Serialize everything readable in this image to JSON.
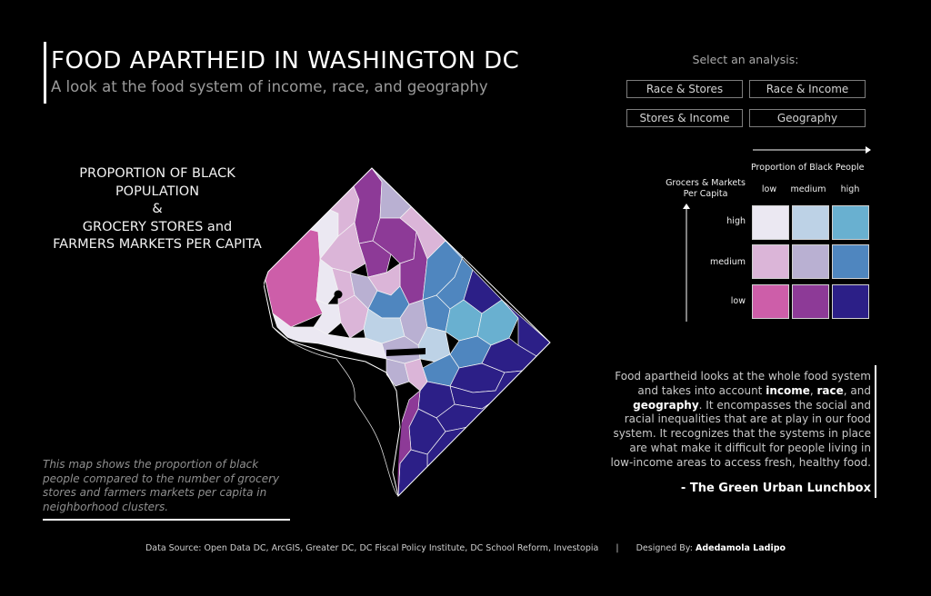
{
  "header": {
    "title": "FOOD APARTHEID IN WASHINGTON DC",
    "subtitle": "A look at the food system of income, race, and geography"
  },
  "analysis_selector": {
    "label": "Select an analysis:",
    "options": [
      "Race & Stores",
      "Race & Income",
      "Stores & Income",
      "Geography"
    ]
  },
  "map_title": {
    "line1": "PROPORTION OF BLACK",
    "line2": "POPULATION",
    "line3": "&",
    "line4": "GROCERY STORES and",
    "line5": "FARMERS MARKETS PER CAPITA"
  },
  "map_note": "This map shows the proportion of black people compared to the number of grocery stores and farmers markets per capita in neighborhood clusters.",
  "legend": {
    "x_title": "Proportion of Black People",
    "y_title": "Grocers & Markets Per Capita",
    "x_levels": [
      "low",
      "medium",
      "high"
    ],
    "y_levels": [
      "high",
      "medium",
      "low"
    ],
    "colors": {
      "high_low": "#ebe8f2",
      "high_medium": "#bdd2e6",
      "high_high": "#69b0d0",
      "medium_low": "#dbb5d8",
      "medium_medium": "#b9b0d2",
      "medium_high": "#4f86bf",
      "low_low": "#cd5ea9",
      "low_medium": "#8d3a97",
      "low_high": "#2c1f87"
    }
  },
  "quote": {
    "part1": "Food apartheid looks at the whole food system and takes into account ",
    "bold1": "income",
    "part2": ", ",
    "bold2": "race",
    "part3": ", and ",
    "bold3": "geography",
    "part4": ". It encompasses the social and racial inequalities that are at play in our food system. It recognizes that the systems in place are what make it difficult for people living in low-income areas to access fresh, healthy food.",
    "author": "- The Green Urban Lunchbox"
  },
  "footer": {
    "source": "Data Source: Open Data DC, ArcGIS, Greater DC, DC Fiscal Policy Institute, DC School Reform, Investopia",
    "separator": "|",
    "designed_label": "Designed By:",
    "designer": "Adedamola Ladipo"
  },
  "map_colors": {
    "border": "#ffffff",
    "high_low": "#ebe8f2",
    "high_medium": "#bdd2e6",
    "high_high": "#69b0d0",
    "medium_low": "#dbb5d8",
    "medium_medium": "#b9b0d2",
    "medium_high": "#4f86bf",
    "low_low": "#cd5ea9",
    "low_medium": "#8d3a97",
    "low_high": "#2c1f87"
  }
}
